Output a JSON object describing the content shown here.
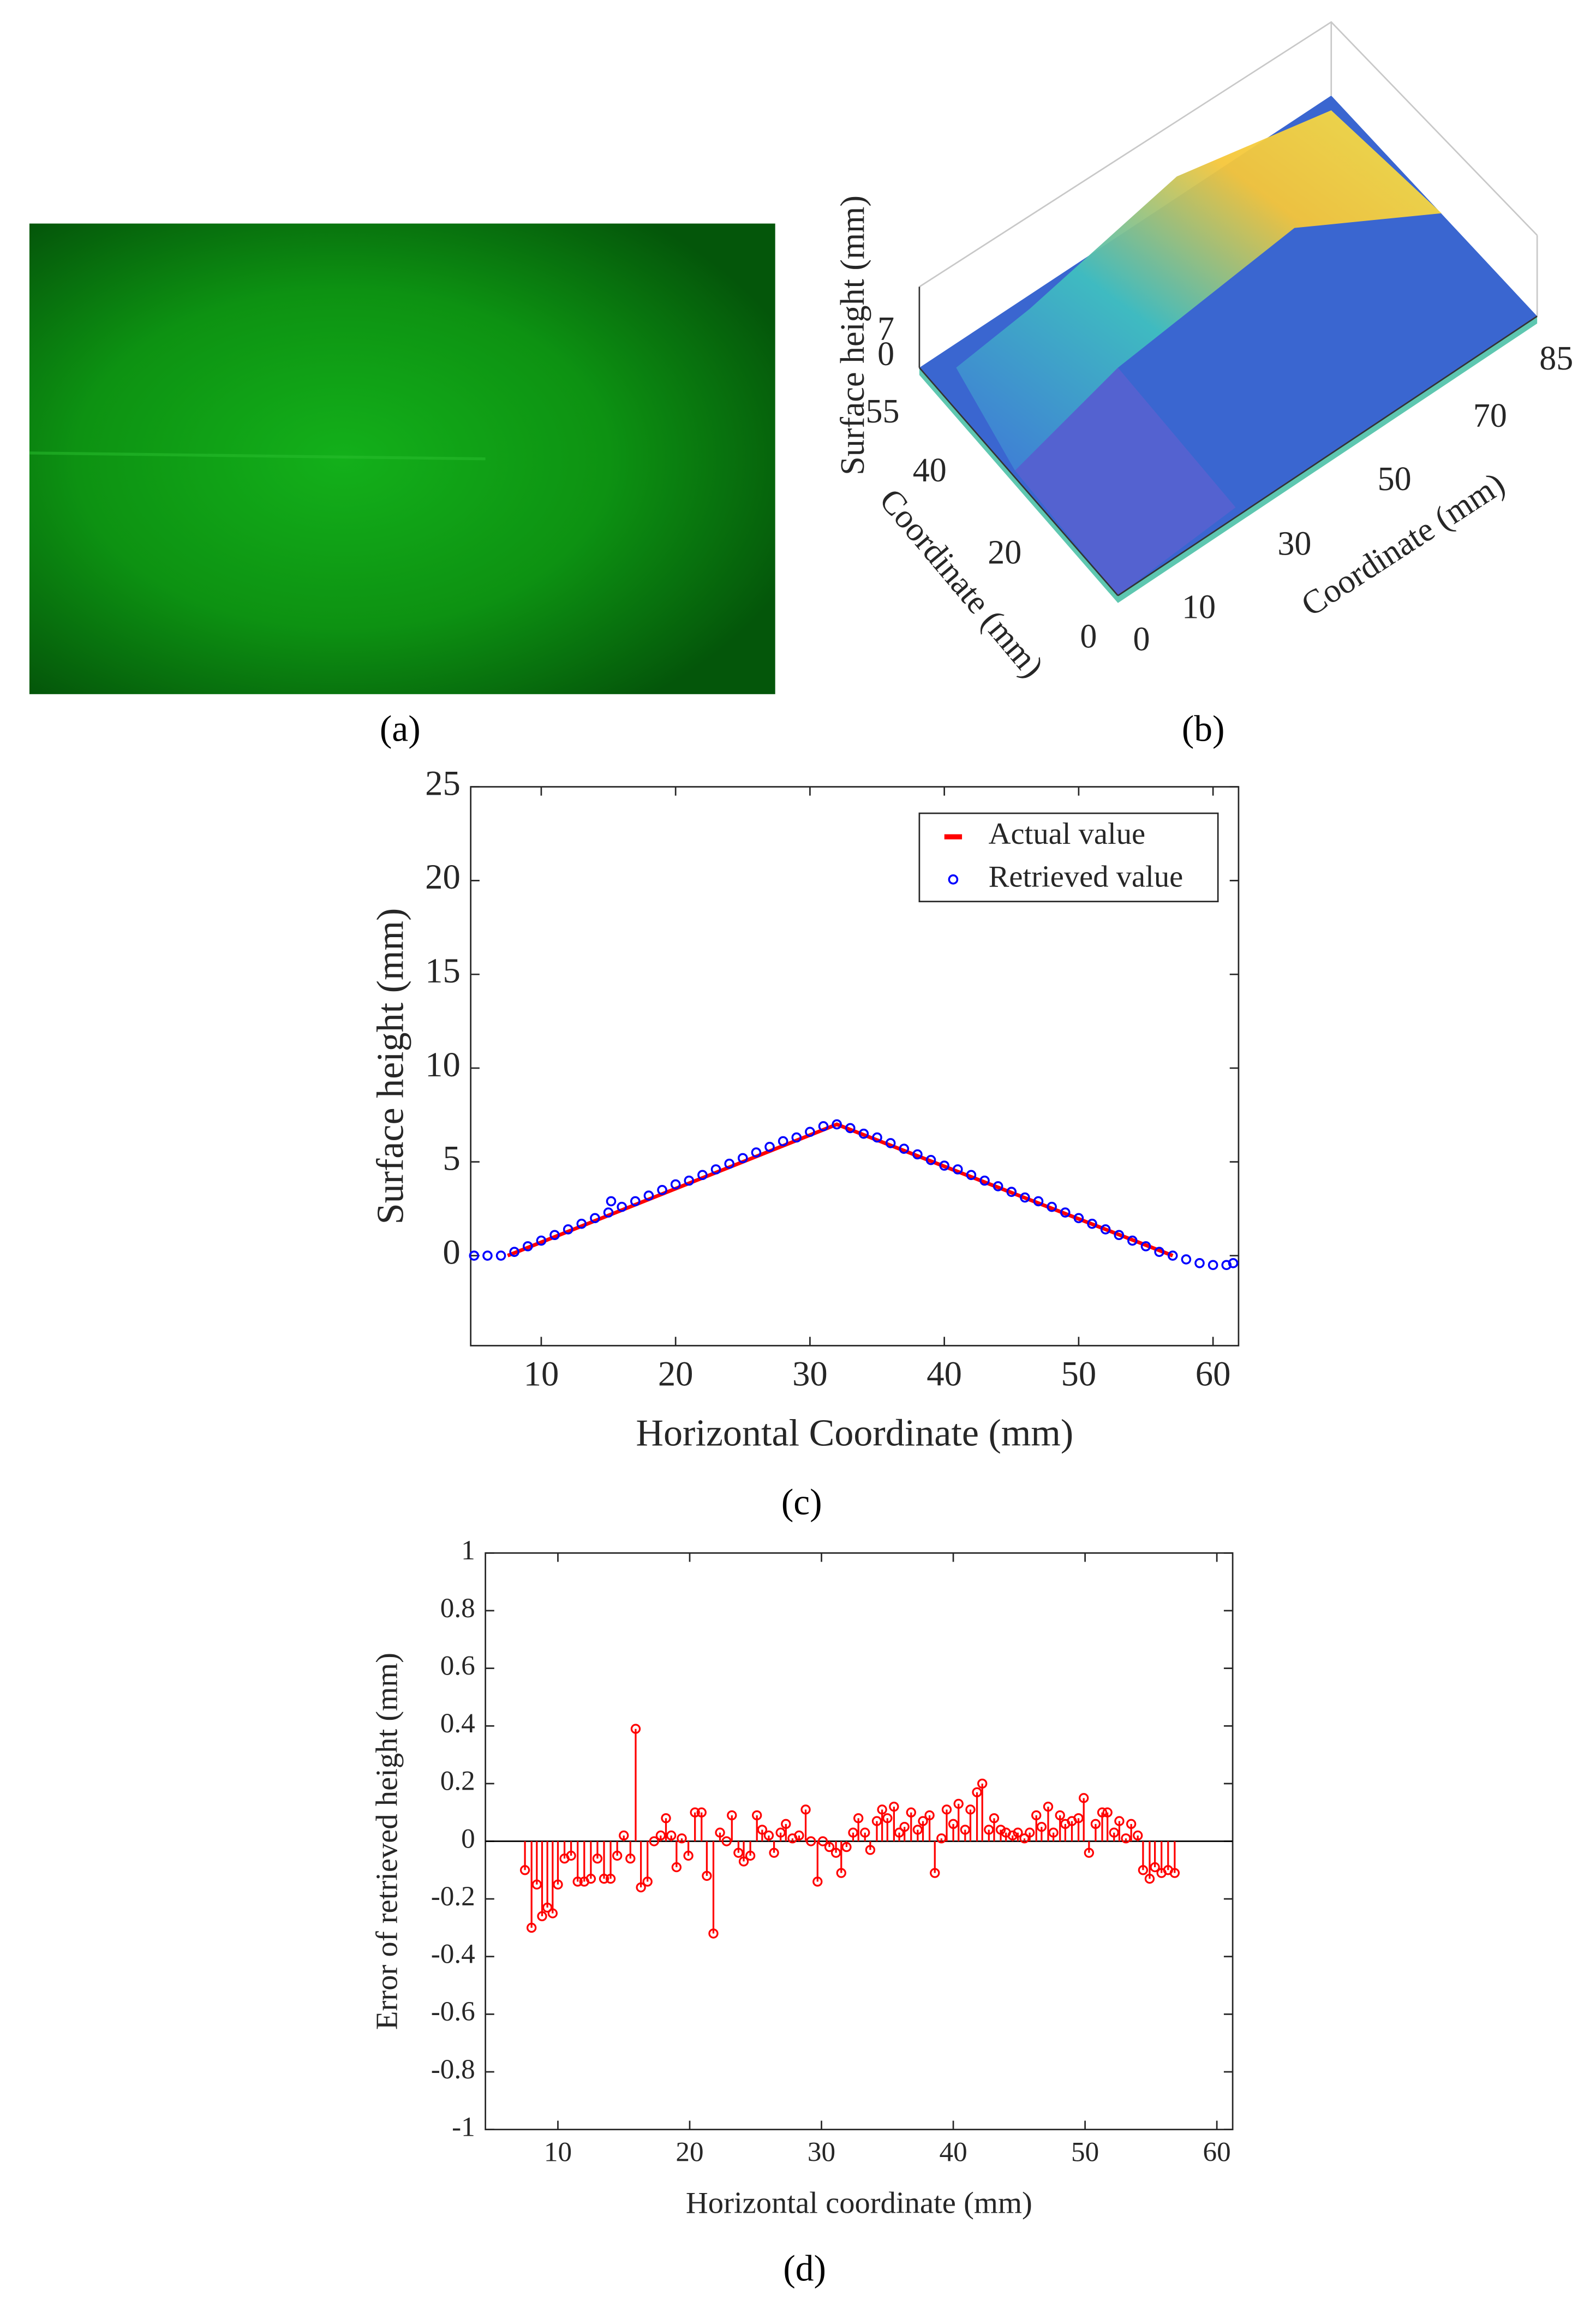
{
  "chart_data": [
    {
      "type": "image",
      "label": "(a)"
    },
    {
      "type": "surface",
      "label": "(b)",
      "zlabel": "Surface height (mm)",
      "xlabel": "Coordinate (mm)",
      "ylabel": "Coordinate (mm)",
      "xticks": [
        0,
        10,
        30,
        50,
        70,
        85
      ],
      "yticks": [
        0,
        20,
        40,
        55
      ],
      "zticks": [
        0,
        7
      ]
    },
    {
      "type": "line",
      "label": "(c)",
      "xlabel": "Horizontal Coordinate (mm)",
      "ylabel": "Surface height (mm)",
      "xlim": [
        4.75,
        61.9
      ],
      "ylim": [
        -4.8,
        25
      ],
      "xticks": [
        10,
        20,
        30,
        40,
        50,
        60
      ],
      "yticks": [
        0,
        5,
        10,
        15,
        20,
        25
      ],
      "legend": "upper right",
      "series": [
        {
          "name": "Actual value",
          "color": "#ff0000",
          "style": "line",
          "x": [
            7.5,
            32,
            57
          ],
          "values": [
            0,
            7,
            0
          ]
        },
        {
          "name": "Retrieved value",
          "color": "#0000ff",
          "style": "markers",
          "x": [
            5,
            6,
            7,
            8,
            9,
            10,
            11,
            12,
            13,
            14,
            15,
            15.2,
            16,
            17,
            18,
            19,
            20,
            21,
            22,
            23,
            24,
            25,
            26,
            27,
            28,
            29,
            30,
            31,
            32,
            33,
            34,
            35,
            36,
            37,
            38,
            39,
            40,
            41,
            42,
            43,
            44,
            45,
            46,
            47,
            48,
            49,
            50,
            51,
            52,
            53,
            54,
            55,
            56,
            57,
            58,
            59,
            60,
            61,
            61.5
          ],
          "values": [
            0,
            0,
            0,
            0.2,
            0.5,
            0.8,
            1.1,
            1.4,
            1.7,
            2.0,
            2.3,
            2.9,
            2.6,
            2.9,
            3.2,
            3.5,
            3.8,
            4.0,
            4.3,
            4.6,
            4.9,
            5.2,
            5.5,
            5.8,
            6.1,
            6.3,
            6.6,
            6.9,
            7.0,
            6.8,
            6.5,
            6.3,
            6.0,
            5.7,
            5.4,
            5.1,
            4.8,
            4.6,
            4.3,
            4.0,
            3.7,
            3.4,
            3.1,
            2.9,
            2.6,
            2.3,
            2.0,
            1.7,
            1.4,
            1.1,
            0.8,
            0.5,
            0.2,
            0,
            -0.2,
            -0.4,
            -0.5,
            -0.5,
            -0.4
          ]
        }
      ]
    },
    {
      "type": "stem",
      "label": "(d)",
      "xlabel": "Horizontal coordinate (mm)",
      "ylabel": "Error of retrieved height (mm)",
      "xlim": [
        4.5,
        61.2
      ],
      "ylim": [
        -1,
        1
      ],
      "xticks": [
        10,
        20,
        30,
        40,
        50,
        60
      ],
      "yticks": [
        -1,
        -0.8,
        -0.6,
        -0.4,
        -0.2,
        0,
        0.2,
        0.4,
        0.6,
        0.8,
        1
      ],
      "series": [
        {
          "color": "#ff0000",
          "x": [
            7.5,
            8,
            8.4,
            8.8,
            9.2,
            9.6,
            10,
            10.5,
            11,
            11.5,
            12,
            12.5,
            13,
            13.5,
            14,
            14.5,
            15,
            15.5,
            15.9,
            16.3,
            16.8,
            17.3,
            17.8,
            18.2,
            18.6,
            19,
            19.4,
            19.9,
            20.4,
            20.9,
            21.3,
            21.8,
            22.3,
            22.8,
            23.2,
            23.7,
            24.1,
            24.6,
            25.1,
            25.5,
            26,
            26.4,
            26.9,
            27.3,
            27.8,
            28.3,
            28.8,
            29.2,
            29.7,
            30.1,
            30.6,
            31.1,
            31.5,
            31.9,
            32.4,
            32.8,
            33.3,
            33.7,
            34.2,
            34.6,
            35,
            35.5,
            35.9,
            36.3,
            36.8,
            37.3,
            37.7,
            38.2,
            38.6,
            39.1,
            39.5,
            40,
            40.4,
            40.9,
            41.3,
            41.8,
            42.2,
            42.7,
            43.1,
            43.6,
            44,
            44.5,
            44.9,
            45.4,
            45.8,
            46.3,
            46.7,
            47.2,
            47.6,
            48.1,
            48.5,
            49,
            49.5,
            49.9,
            50.3,
            50.8,
            51.3,
            51.7,
            52.2,
            52.6,
            53.1,
            53.5,
            54,
            54.4,
            54.9,
            55.3,
            55.8,
            56.3,
            56.8
          ],
          "values": [
            -0.1,
            -0.3,
            -0.15,
            -0.26,
            -0.23,
            -0.25,
            -0.15,
            -0.06,
            -0.05,
            -0.14,
            -0.14,
            -0.13,
            -0.06,
            -0.13,
            -0.13,
            -0.05,
            0.02,
            -0.06,
            0.39,
            -0.16,
            -0.14,
            0,
            0.02,
            0.08,
            0.02,
            -0.09,
            0.01,
            -0.05,
            0.1,
            0.1,
            -0.12,
            -0.32,
            0.03,
            0,
            0.09,
            -0.04,
            -0.07,
            -0.05,
            0.09,
            0.04,
            0.02,
            -0.04,
            0.03,
            0.06,
            0.01,
            0.02,
            0.11,
            0,
            -0.14,
            0,
            -0.02,
            -0.04,
            -0.11,
            -0.02,
            0.03,
            0.08,
            0.03,
            -0.03,
            0.07,
            0.11,
            0.08,
            0.12,
            0.03,
            0.05,
            0.1,
            0.04,
            0.07,
            0.09,
            -0.11,
            0.01,
            0.11,
            0.06,
            0.13,
            0.04,
            0.11,
            0.17,
            0.2,
            0.04,
            0.08,
            0.04,
            0.03,
            0.02,
            0.03,
            0.01,
            0.03,
            0.09,
            0.05,
            0.12,
            0.03,
            0.09,
            0.06,
            0.07,
            0.08,
            0.15,
            -0.04,
            0.06,
            0.1,
            0.1,
            0.03,
            0.07,
            0.01,
            0.06,
            0.02,
            -0.1,
            -0.13,
            -0.09,
            -0.11,
            -0.1,
            -0.11
          ]
        }
      ]
    }
  ]
}
